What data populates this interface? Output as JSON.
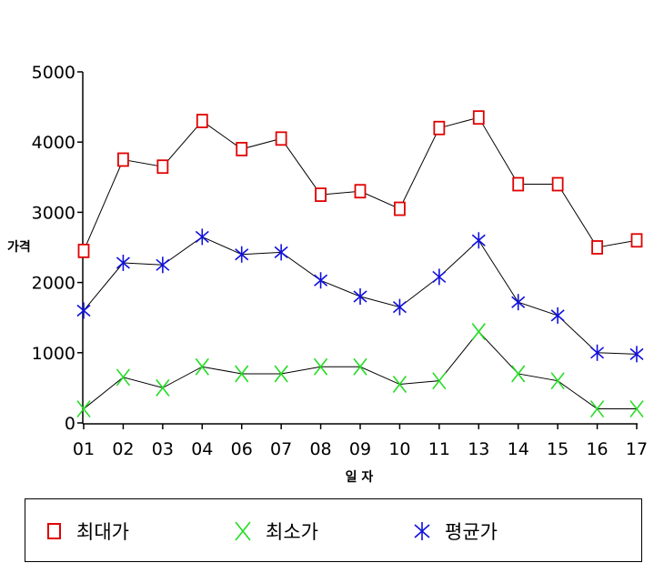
{
  "chart_data": {
    "type": "line",
    "title": "",
    "xlabel": "일 자",
    "ylabel": "가격",
    "categories": [
      "01",
      "02",
      "03",
      "04",
      "06",
      "07",
      "08",
      "09",
      "10",
      "11",
      "13",
      "14",
      "15",
      "16",
      "17"
    ],
    "ylim": [
      0,
      5000
    ],
    "yticks": [
      0,
      1000,
      2000,
      3000,
      4000,
      5000
    ],
    "grid": false,
    "legend_position": "bottom",
    "series": [
      {
        "name": "최대가",
        "marker": "square",
        "color": "#e00000",
        "values": [
          2450,
          3750,
          3650,
          4300,
          3900,
          4050,
          3250,
          3300,
          3050,
          4200,
          4350,
          3400,
          3400,
          2500,
          2600
        ]
      },
      {
        "name": "최소가",
        "marker": "x",
        "color": "#22dd22",
        "values": [
          200,
          650,
          500,
          800,
          700,
          700,
          800,
          800,
          550,
          600,
          1300,
          700,
          600,
          200,
          200
        ]
      },
      {
        "name": "평균가",
        "marker": "star",
        "color": "#1010dd",
        "values": [
          1600,
          2280,
          2250,
          2650,
          2400,
          2430,
          2030,
          1800,
          1650,
          2080,
          2600,
          1720,
          1530,
          1000,
          980
        ]
      }
    ],
    "line_color": "#000000"
  }
}
